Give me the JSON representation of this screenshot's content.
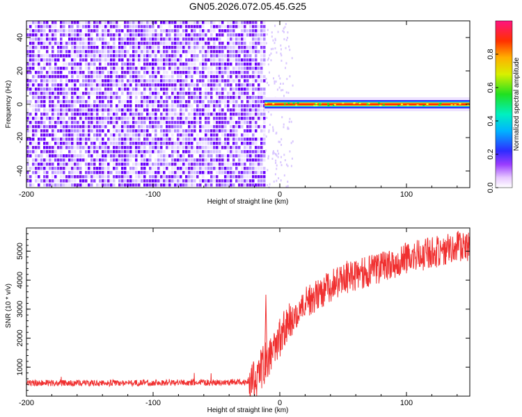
{
  "title": "GN05.2026.072.05.45.G25",
  "chart_data": [
    {
      "type": "heatmap",
      "xlabel": "Height of straight line (km)",
      "ylabel": "Frequency (Hz)",
      "xlim": [
        -200,
        150
      ],
      "ylim": [
        -50,
        50
      ],
      "xticks": [
        -200,
        -100,
        0,
        100
      ],
      "yticks": [
        -40,
        -20,
        0,
        20,
        40
      ],
      "colorbar": {
        "label": "Normalized spectral amplitude",
        "range": [
          0,
          1
        ],
        "ticks": [
          0.0,
          0.2,
          0.4,
          0.6,
          0.8
        ]
      },
      "regions": [
        {
          "description_x_range": [
            -200,
            -12
          ],
          "frequency_range": [
            -50,
            50
          ],
          "amplitude": 0.15,
          "pattern": "noise"
        },
        {
          "description_x_range": [
            -12,
            150
          ],
          "frequency_center": 0,
          "frequency_halfwidth": 3,
          "amplitude": 0.95,
          "pattern": "ridge"
        }
      ]
    },
    {
      "type": "line",
      "xlabel": "Height of straight line (km)",
      "ylabel": "SNR (10 * v/v)",
      "xlim": [
        -200,
        150
      ],
      "ylim": [
        0,
        5800
      ],
      "xticks": [
        -200,
        -100,
        0,
        100
      ],
      "yticks": [
        1000,
        2000,
        3000,
        4000,
        5000
      ],
      "color": "#f03030",
      "series": [
        {
          "x": [
            -200,
            -150,
            -100,
            -50,
            -30,
            -20,
            -15,
            -10,
            -5,
            0,
            5,
            10,
            20,
            30,
            40,
            50,
            60,
            70,
            80,
            90,
            100,
            110,
            120,
            130,
            140,
            150
          ],
          "y": [
            450,
            450,
            460,
            470,
            480,
            550,
            900,
            1300,
            1700,
            2000,
            2400,
            2700,
            3200,
            3500,
            3800,
            4000,
            4150,
            4300,
            4450,
            4600,
            4750,
            4850,
            4950,
            5050,
            5150,
            5200
          ]
        }
      ]
    }
  ]
}
